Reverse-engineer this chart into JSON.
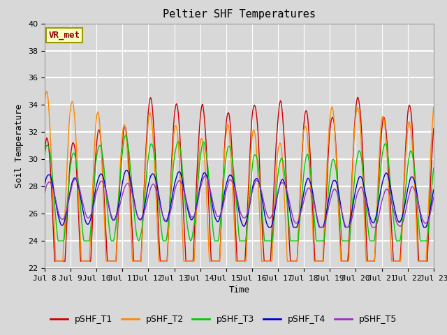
{
  "title": "Peltier SHF Temperatures",
  "xlabel": "Time",
  "ylabel": "Soil Temperature",
  "xlim_start": 0,
  "xlim_end": 360,
  "ylim": [
    22,
    40
  ],
  "yticks": [
    22,
    24,
    26,
    28,
    30,
    32,
    34,
    36,
    38,
    40
  ],
  "xtick_labels": [
    "Jul 8",
    "Jul 9",
    "Jul 10",
    "Jul 11",
    "Jul 12",
    "Jul 13",
    "Jul 14",
    "Jul 15",
    "Jul 16",
    "Jul 17",
    "Jul 18",
    "Jul 19",
    "Jul 20",
    "Jul 21",
    "Jul 22",
    "Jul 23"
  ],
  "xtick_positions": [
    0,
    24,
    48,
    72,
    96,
    120,
    144,
    168,
    192,
    216,
    240,
    264,
    288,
    312,
    336,
    360
  ],
  "series_colors": [
    "#cc0000",
    "#ff8800",
    "#00cc00",
    "#0000cc",
    "#9933bb"
  ],
  "series_labels": [
    "pSHF_T1",
    "pSHF_T2",
    "pSHF_T3",
    "pSHF_T4",
    "pSHF_T5"
  ],
  "vr_met_label": "VR_met",
  "fig_facecolor": "#d8d8d8",
  "plot_bg_color": "#d8d8d8",
  "title_fontsize": 11,
  "axis_label_fontsize": 9,
  "tick_fontsize": 8,
  "legend_fontsize": 9,
  "line_width": 1.0
}
